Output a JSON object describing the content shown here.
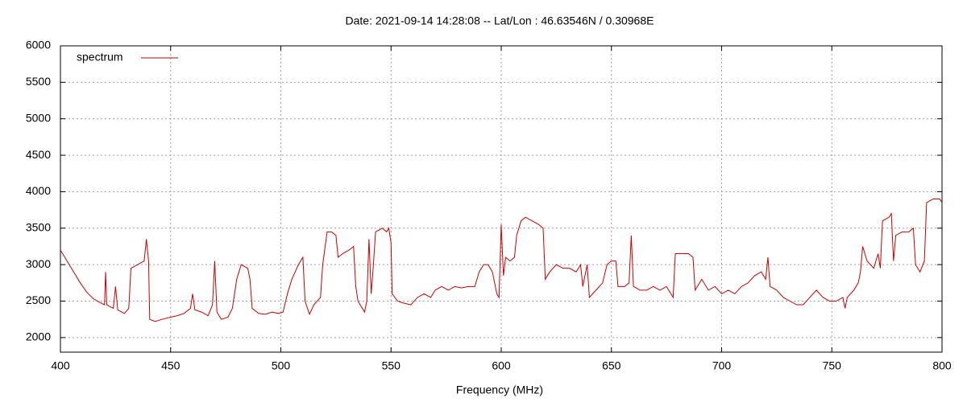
{
  "chart_data": {
    "type": "line",
    "title": "Date: 2021-09-14 14:28:08  --  Lat/Lon : 46.63546N / 0.30968E",
    "x_label": "Frequency (MHz)",
    "xlim": [
      400,
      800
    ],
    "xticks": [
      400,
      450,
      500,
      550,
      600,
      650,
      700,
      750,
      800
    ],
    "ylim": [
      1800,
      6000
    ],
    "yticks": [
      2000,
      2500,
      3000,
      3500,
      4000,
      4500,
      5000,
      5500,
      6000
    ],
    "grid": true,
    "legend": "top-left",
    "series": [
      {
        "name": "spectrum",
        "color": "#cc0000",
        "x": [
          400,
          403,
          406,
          409,
          412,
          415,
          418,
          420,
          420.5,
          421,
          424,
          425,
          426,
          429,
          431,
          432,
          435,
          438,
          439,
          440,
          440.5,
          443,
          446,
          450,
          453,
          456,
          459,
          460,
          461,
          464,
          467,
          469,
          470,
          471,
          473,
          476,
          478,
          480,
          482,
          485,
          486,
          487,
          490,
          493,
          496,
          499,
          501,
          503,
          505,
          508,
          510,
          511,
          513,
          515,
          518,
          519,
          521,
          523,
          525,
          526,
          528,
          531,
          533,
          534,
          535,
          537,
          538,
          539,
          540,
          541,
          542,
          543,
          546,
          548,
          549,
          550,
          550.5,
          553,
          556,
          559,
          562,
          565,
          568,
          570,
          573,
          576,
          579,
          582,
          585,
          588,
          590,
          592,
          594,
          596,
          598,
          599,
          600,
          601,
          602,
          604,
          606,
          607,
          609,
          611,
          614,
          617,
          619,
          620,
          622,
          625,
          628,
          631,
          634,
          636,
          637,
          639,
          640,
          643,
          646,
          648,
          650,
          652,
          653,
          656,
          658,
          659,
          660,
          663,
          666,
          669,
          672,
          675,
          678,
          679,
          682,
          685,
          687,
          688,
          691,
          694,
          697,
          700,
          703,
          706,
          709,
          712,
          715,
          718,
          720,
          721,
          722,
          725,
          728,
          731,
          734,
          737,
          740,
          743,
          746,
          749,
          752,
          755,
          756,
          757,
          760,
          762,
          763,
          764,
          766,
          769,
          771,
          772,
          773,
          776,
          777,
          778,
          779,
          782,
          785,
          787,
          788,
          790,
          792,
          793,
          796,
          799,
          800
        ],
        "values": [
          3200,
          3050,
          2900,
          2750,
          2620,
          2530,
          2480,
          2450,
          2900,
          2450,
          2400,
          2700,
          2380,
          2330,
          2400,
          2950,
          3000,
          3050,
          3350,
          3050,
          2250,
          2220,
          2250,
          2280,
          2300,
          2330,
          2400,
          2600,
          2380,
          2350,
          2300,
          2450,
          3050,
          2350,
          2250,
          2280,
          2400,
          2800,
          3000,
          2950,
          2800,
          2400,
          2330,
          2320,
          2350,
          2330,
          2350,
          2600,
          2800,
          3000,
          3100,
          2500,
          2320,
          2450,
          2550,
          3000,
          3450,
          3450,
          3400,
          3100,
          3150,
          3200,
          3250,
          2700,
          2500,
          2400,
          2350,
          2500,
          3350,
          2600,
          3000,
          3450,
          3500,
          3450,
          3500,
          3300,
          2600,
          2500,
          2470,
          2450,
          2550,
          2600,
          2550,
          2650,
          2700,
          2650,
          2700,
          2680,
          2700,
          2700,
          2900,
          3000,
          3000,
          2900,
          2600,
          2550,
          3550,
          2850,
          3100,
          3050,
          3100,
          3400,
          3600,
          3650,
          3600,
          3550,
          3500,
          2800,
          2900,
          3000,
          2950,
          2950,
          2900,
          3000,
          2700,
          3000,
          2550,
          2650,
          2750,
          3000,
          3050,
          3050,
          2700,
          2700,
          2750,
          3400,
          2700,
          2650,
          2650,
          2700,
          2650,
          2700,
          2550,
          3150,
          3150,
          3150,
          3100,
          2650,
          2800,
          2650,
          2700,
          2600,
          2650,
          2600,
          2700,
          2750,
          2850,
          2900,
          2800,
          3100,
          2700,
          2650,
          2550,
          2500,
          2450,
          2450,
          2550,
          2650,
          2550,
          2500,
          2500,
          2550,
          2400,
          2550,
          2650,
          2750,
          2900,
          3250,
          3050,
          2950,
          3150,
          2950,
          3600,
          3650,
          3700,
          3050,
          3400,
          3450,
          3450,
          3500,
          3000,
          2900,
          3050,
          3850,
          3900,
          3900,
          3850
        ]
      }
    ]
  }
}
